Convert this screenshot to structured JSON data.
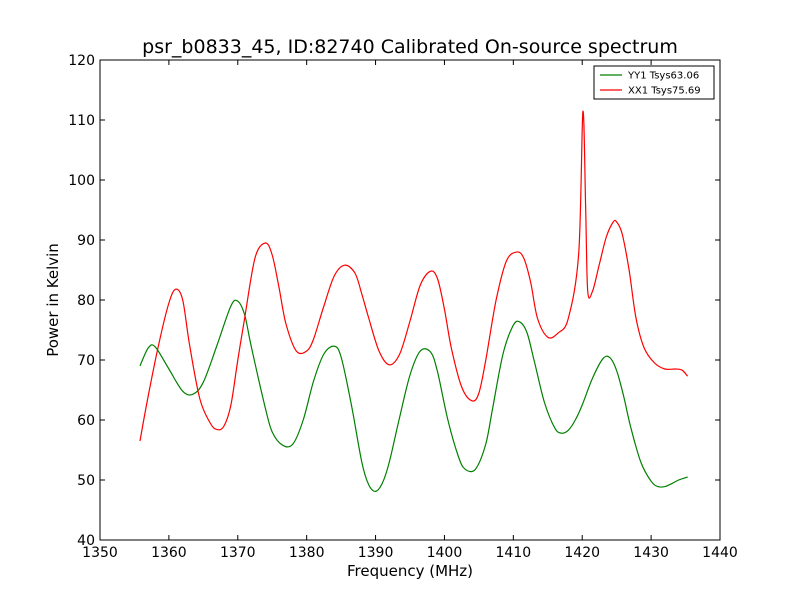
{
  "chart_data": {
    "type": "line",
    "title": "psr_b0833_45, ID:82740 Calibrated On-source spectrum",
    "xlabel": "Frequency (MHz)",
    "ylabel": "Power in Kelvin",
    "xlim": [
      1350,
      1440
    ],
    "ylim": [
      40,
      120
    ],
    "xticks": [
      1350,
      1360,
      1370,
      1380,
      1390,
      1400,
      1410,
      1420,
      1430,
      1440
    ],
    "yticks": [
      40,
      50,
      60,
      70,
      80,
      90,
      100,
      110,
      120
    ],
    "grid": false,
    "legend_position": "top-right",
    "series": [
      {
        "name": "YY1 Tsys63.06",
        "color": "#008000",
        "x": [
          1355.8,
          1357,
          1358,
          1360,
          1362,
          1363.5,
          1365,
          1367,
          1369,
          1370,
          1371,
          1372,
          1374,
          1375,
          1376.5,
          1378,
          1379.5,
          1381,
          1382.5,
          1384,
          1385,
          1386.5,
          1388,
          1389,
          1390,
          1391,
          1392,
          1393.5,
          1395,
          1396.5,
          1398,
          1399,
          1400.5,
          1402,
          1403,
          1404.5,
          1406,
          1407,
          1408.5,
          1410,
          1411,
          1412,
          1413,
          1414.5,
          1416,
          1417,
          1418,
          1419,
          1420,
          1421.5,
          1423,
          1424,
          1425,
          1426,
          1427,
          1428.5,
          1430,
          1431,
          1432,
          1433,
          1434,
          1435.3
        ],
        "y": [
          69,
          72,
          72.2,
          68.5,
          64.8,
          64.3,
          66.3,
          72.5,
          79,
          79.8,
          77.5,
          72,
          62,
          58,
          55.8,
          56,
          60,
          66.5,
          71,
          72.3,
          70.5,
          62.5,
          53,
          49.2,
          48.1,
          49.5,
          53,
          60.5,
          67.5,
          71.5,
          71.3,
          68,
          60,
          54,
          51.8,
          51.8,
          56,
          62,
          71,
          75.8,
          76.3,
          74.5,
          70,
          63,
          58.7,
          57.8,
          58.3,
          60,
          62.5,
          67,
          70.2,
          70.4,
          68.2,
          64,
          59,
          53,
          49.8,
          48.9,
          48.9,
          49.4,
          50,
          50.5
        ]
      },
      {
        "name": "XX1 Tsys75.69",
        "color": "#ff0000",
        "x": [
          1355.8,
          1357,
          1358.5,
          1360,
          1361,
          1362,
          1363,
          1364.5,
          1366,
          1367,
          1368,
          1369,
          1370,
          1371,
          1372.5,
          1374,
          1375,
          1376,
          1377,
          1378.5,
          1380,
          1381,
          1382.5,
          1384,
          1385.5,
          1387,
          1388,
          1389,
          1390.5,
          1392,
          1393.5,
          1395,
          1396.5,
          1398,
          1399,
          1400,
          1401,
          1402.5,
          1404,
          1405,
          1406,
          1407.5,
          1409,
          1410.5,
          1411.5,
          1412.5,
          1413.5,
          1415,
          1416.5,
          1418,
          1419.5,
          1420.1,
          1420.5,
          1420.8,
          1421.5,
          1422.5,
          1423.5,
          1424.5,
          1425,
          1425.8,
          1426.8,
          1427.8,
          1429,
          1430.5,
          1432,
          1433.5,
          1434.5,
          1435.3
        ],
        "y": [
          56.5,
          64,
          72.5,
          79.5,
          81.8,
          80,
          72.5,
          63.5,
          59.5,
          58.4,
          59,
          62.5,
          70,
          77,
          87,
          89.5,
          87.5,
          82,
          76,
          71.5,
          71.5,
          73.5,
          79,
          84,
          85.8,
          84.5,
          81,
          77,
          71.5,
          69.2,
          71,
          76.5,
          82.5,
          84.8,
          83.5,
          78.5,
          72,
          65.5,
          63.2,
          64.5,
          70,
          80,
          86.5,
          88,
          87,
          83,
          77,
          73.8,
          74.5,
          77,
          88,
          111.4,
          95,
          81.5,
          81.5,
          86,
          90.5,
          93,
          93,
          91,
          85,
          77,
          72,
          69.5,
          68.5,
          68.5,
          68.3,
          67.3
        ]
      }
    ]
  }
}
